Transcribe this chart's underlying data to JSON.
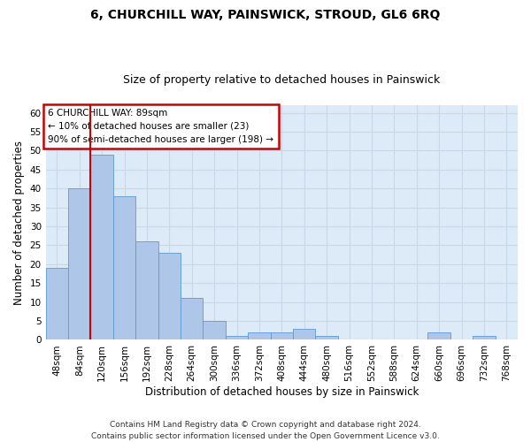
{
  "title": "6, CHURCHILL WAY, PAINSWICK, STROUD, GL6 6RQ",
  "subtitle": "Size of property relative to detached houses in Painswick",
  "xlabel": "Distribution of detached houses by size in Painswick",
  "ylabel": "Number of detached properties",
  "categories": [
    "48sqm",
    "84sqm",
    "120sqm",
    "156sqm",
    "192sqm",
    "228sqm",
    "264sqm",
    "300sqm",
    "336sqm",
    "372sqm",
    "408sqm",
    "444sqm",
    "480sqm",
    "516sqm",
    "552sqm",
    "588sqm",
    "624sqm",
    "660sqm",
    "696sqm",
    "732sqm",
    "768sqm"
  ],
  "values": [
    19,
    40,
    49,
    38,
    26,
    23,
    11,
    5,
    1,
    2,
    2,
    3,
    1,
    0,
    0,
    0,
    0,
    2,
    0,
    1,
    0
  ],
  "bar_color": "#aec6e8",
  "bar_edge_color": "#5b9bd5",
  "red_line_x": 1.5,
  "annotation_title": "6 CHURCHILL WAY: 89sqm",
  "annotation_line1": "← 10% of detached houses are smaller (23)",
  "annotation_line2": "90% of semi-detached houses are larger (198) →",
  "annotation_box_color": "#ffffff",
  "annotation_box_edge": "#cc0000",
  "red_line_color": "#cc0000",
  "ylim": [
    0,
    62
  ],
  "yticks": [
    0,
    5,
    10,
    15,
    20,
    25,
    30,
    35,
    40,
    45,
    50,
    55,
    60
  ],
  "grid_color": "#c8d8e8",
  "background_color": "#ddeaf7",
  "footer_line1": "Contains HM Land Registry data © Crown copyright and database right 2024.",
  "footer_line2": "Contains public sector information licensed under the Open Government Licence v3.0.",
  "title_fontsize": 10,
  "subtitle_fontsize": 9,
  "axis_label_fontsize": 8.5,
  "tick_fontsize": 7.5,
  "footer_fontsize": 6.5
}
